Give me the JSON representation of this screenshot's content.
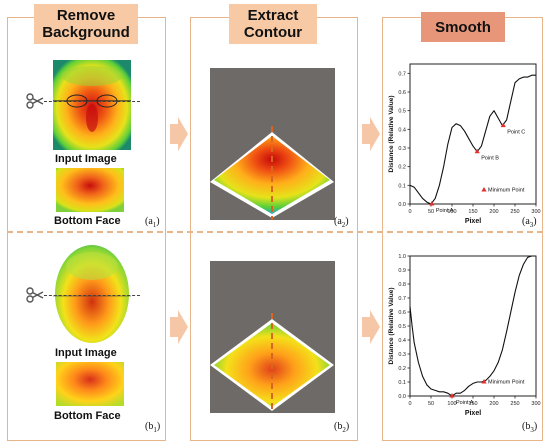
{
  "headers": {
    "step1_line1": "Remove",
    "step1_line2": "Background",
    "step2_line1": "Extract",
    "step2_line2": "Contour",
    "step3": "Smooth"
  },
  "row_a": {
    "input_label": "Input Image",
    "bottom_label": "Bottom Face",
    "tag1": "(a",
    "tag1_sub": "1",
    "tag2": "(a",
    "tag2_sub": "2",
    "tag3": "(a",
    "tag3_sub": "3"
  },
  "row_b": {
    "input_label": "Input Image",
    "bottom_label": "Bottom Face",
    "tag1": "(b",
    "tag1_sub": "1",
    "tag2": "(b",
    "tag2_sub": "2",
    "tag3": "(b",
    "tag3_sub": "3"
  },
  "colors": {
    "panel_border": "#e8b48a",
    "header_fill": "#f7c9a5",
    "smooth_header_fill": "#e8967a",
    "arrow_fill": "#f6c7a6",
    "contour_bg": "#6e6a67",
    "min_point": "#e03030"
  },
  "chart_data": [
    {
      "type": "line",
      "xlabel": "Pixel",
      "ylabel": "Distance (Relative Value)",
      "xlim": [
        0,
        300
      ],
      "ylim": [
        0.0,
        0.75
      ],
      "xticks": [
        0,
        50,
        100,
        150,
        200,
        250,
        300
      ],
      "yticks": [
        0.0,
        0.1,
        0.2,
        0.3,
        0.4,
        0.5,
        0.6,
        0.7
      ],
      "x": [
        0,
        10,
        20,
        30,
        40,
        50,
        60,
        70,
        80,
        90,
        100,
        110,
        120,
        130,
        140,
        150,
        160,
        170,
        180,
        190,
        200,
        210,
        220,
        230,
        240,
        250,
        260,
        270,
        280,
        290,
        300
      ],
      "y": [
        0.1,
        0.09,
        0.06,
        0.03,
        0.01,
        0.0,
        0.03,
        0.1,
        0.2,
        0.32,
        0.41,
        0.43,
        0.42,
        0.39,
        0.35,
        0.31,
        0.28,
        0.31,
        0.39,
        0.47,
        0.5,
        0.46,
        0.42,
        0.45,
        0.55,
        0.65,
        0.67,
        0.68,
        0.68,
        0.69,
        0.69
      ],
      "legend": "Minimum Point",
      "legend_position": "bottom-right",
      "annotations": [
        {
          "label": "Point A",
          "x": 52,
          "y": 0.0
        },
        {
          "label": "Point B",
          "x": 160,
          "y": 0.28
        },
        {
          "label": "Point C",
          "x": 222,
          "y": 0.42
        }
      ]
    },
    {
      "type": "line",
      "xlabel": "Pixel",
      "ylabel": "Distance (Relative Value)",
      "xlim": [
        0,
        300
      ],
      "ylim": [
        0.0,
        1.0
      ],
      "xticks": [
        0,
        50,
        100,
        150,
        200,
        250,
        300
      ],
      "yticks": [
        0.0,
        0.1,
        0.2,
        0.3,
        0.4,
        0.5,
        0.6,
        0.7,
        0.8,
        0.9,
        1.0
      ],
      "x": [
        0,
        5,
        10,
        20,
        30,
        40,
        50,
        60,
        70,
        80,
        90,
        100,
        110,
        120,
        130,
        140,
        150,
        160,
        170,
        180,
        190,
        200,
        210,
        220,
        230,
        240,
        250,
        260,
        270,
        280,
        290,
        300
      ],
      "y": [
        0.64,
        0.5,
        0.38,
        0.24,
        0.14,
        0.08,
        0.05,
        0.04,
        0.03,
        0.03,
        0.02,
        0.0,
        0.02,
        0.02,
        0.04,
        0.07,
        0.09,
        0.1,
        0.1,
        0.11,
        0.14,
        0.18,
        0.24,
        0.33,
        0.46,
        0.6,
        0.74,
        0.86,
        0.94,
        0.99,
        1.0,
        1.0
      ],
      "legend": "Minimum Point",
      "legend_position": "bottom-right",
      "annotations": [
        {
          "label": "Point A",
          "x": 100,
          "y": 0.0
        }
      ]
    }
  ]
}
